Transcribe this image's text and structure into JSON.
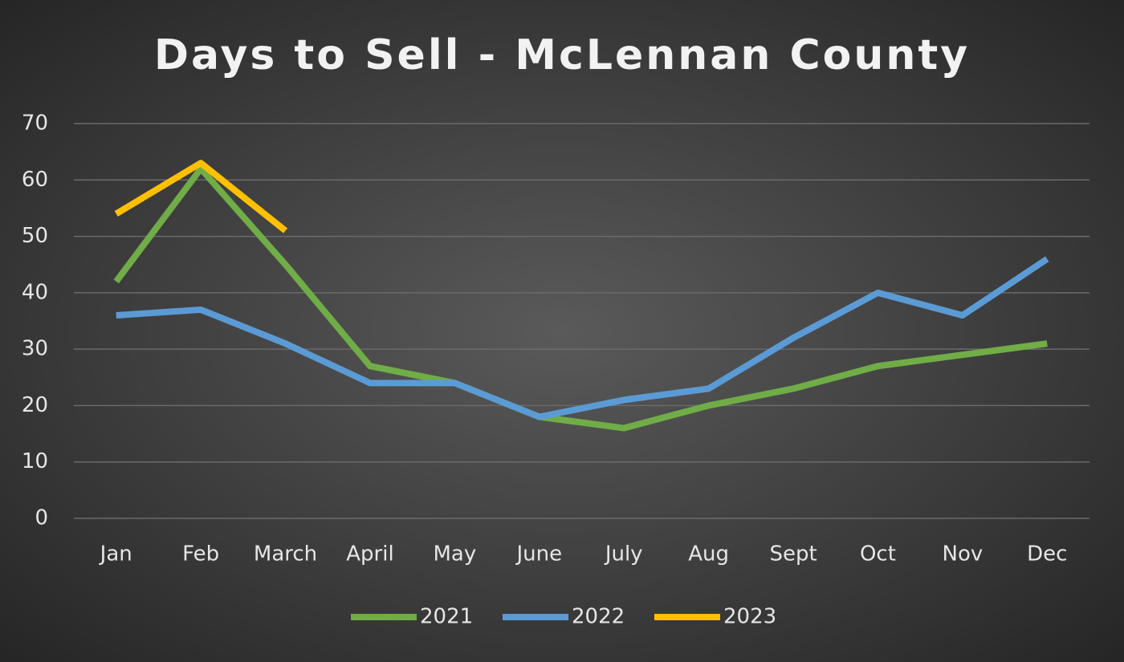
{
  "chart_data": {
    "type": "line",
    "title": "Days to Sell - McLennan County",
    "categories": [
      "Jan",
      "Feb",
      "March",
      "April",
      "May",
      "June",
      "July",
      "Aug",
      "Sept",
      "Oct",
      "Nov",
      "Dec"
    ],
    "series": [
      {
        "name": "2021",
        "color": "#70ad47",
        "values": [
          42,
          62,
          45,
          27,
          24,
          18,
          16,
          20,
          23,
          27,
          29,
          31
        ]
      },
      {
        "name": "2022",
        "color": "#5b9bd5",
        "values": [
          36,
          37,
          31,
          24,
          24,
          18,
          21,
          23,
          32,
          40,
          36,
          46
        ]
      },
      {
        "name": "2023",
        "color": "#ffc000",
        "values": [
          54,
          63,
          51,
          null,
          null,
          null,
          null,
          null,
          null,
          null,
          null,
          null
        ]
      }
    ],
    "ylim": [
      0,
      70
    ],
    "yticks": [
      0,
      10,
      20,
      30,
      40,
      50,
      60,
      70
    ],
    "grid": true,
    "legend": "bottom"
  }
}
